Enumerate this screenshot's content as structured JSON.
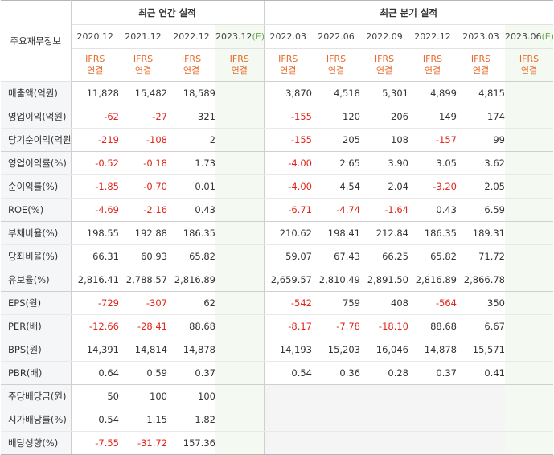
{
  "table": {
    "corner_label": "주요재무정보",
    "annual_group_title": "최근 연간 실적",
    "quarter_group_title": "최근 분기 실적",
    "annual_periods": [
      "2020.12",
      "2021.12",
      "2022.12",
      "2023.12"
    ],
    "annual_estimate_mark": "(E)",
    "quarter_periods": [
      "2022.03",
      "2022.06",
      "2022.09",
      "2022.12",
      "2023.03",
      "2023.06"
    ],
    "quarter_estimate_mark": "(E)",
    "basis_line1": "IFRS",
    "basis_line2": "연결",
    "rows": [
      {
        "label": "매출액(억원)",
        "values": [
          "11,828",
          "15,482",
          "18,589",
          "",
          "3,870",
          "4,518",
          "5,301",
          "4,899",
          "4,815",
          ""
        ]
      },
      {
        "label": "영업이익(억원)",
        "values": [
          "-62",
          "-27",
          "321",
          "",
          "-155",
          "120",
          "206",
          "149",
          "174",
          ""
        ]
      },
      {
        "label": "당기순이익(억원)",
        "values": [
          "-219",
          "-108",
          "2",
          "",
          "-155",
          "205",
          "108",
          "-157",
          "99",
          ""
        ]
      },
      {
        "label": "영업이익률(%)",
        "values": [
          "-0.52",
          "-0.18",
          "1.73",
          "",
          "-4.00",
          "2.65",
          "3.90",
          "3.05",
          "3.62",
          ""
        ]
      },
      {
        "label": "순이익률(%)",
        "values": [
          "-1.85",
          "-0.70",
          "0.01",
          "",
          "-4.00",
          "4.54",
          "2.04",
          "-3.20",
          "2.05",
          ""
        ]
      },
      {
        "label": "ROE(%)",
        "values": [
          "-4.69",
          "-2.16",
          "0.43",
          "",
          "-6.71",
          "-4.74",
          "-1.64",
          "0.43",
          "6.59",
          ""
        ]
      },
      {
        "label": "부채비율(%)",
        "values": [
          "198.55",
          "192.88",
          "186.35",
          "",
          "210.62",
          "198.41",
          "212.84",
          "186.35",
          "189.31",
          ""
        ]
      },
      {
        "label": "당좌비율(%)",
        "values": [
          "66.31",
          "60.93",
          "65.82",
          "",
          "59.07",
          "67.43",
          "66.25",
          "65.82",
          "71.72",
          ""
        ]
      },
      {
        "label": "유보율(%)",
        "values": [
          "2,816.41",
          "2,788.57",
          "2,816.89",
          "",
          "2,659.57",
          "2,810.49",
          "2,891.50",
          "2,816.89",
          "2,866.78",
          ""
        ]
      },
      {
        "label": "EPS(원)",
        "values": [
          "-729",
          "-307",
          "62",
          "",
          "-542",
          "759",
          "408",
          "-564",
          "350",
          ""
        ]
      },
      {
        "label": "PER(배)",
        "values": [
          "-12.66",
          "-28.41",
          "88.68",
          "",
          "-8.17",
          "-7.78",
          "-18.10",
          "88.68",
          "6.67",
          ""
        ]
      },
      {
        "label": "BPS(원)",
        "values": [
          "14,391",
          "14,814",
          "14,878",
          "",
          "14,193",
          "15,203",
          "16,046",
          "14,878",
          "15,571",
          ""
        ]
      },
      {
        "label": "PBR(배)",
        "values": [
          "0.64",
          "0.59",
          "0.37",
          "",
          "0.54",
          "0.36",
          "0.28",
          "0.37",
          "0.41",
          ""
        ]
      },
      {
        "label": "주당배당금(원)",
        "values": [
          "50",
          "100",
          "100",
          "",
          "",
          "",
          "",
          "",
          "",
          ""
        ]
      },
      {
        "label": "시가배당률(%)",
        "values": [
          "0.54",
          "1.15",
          "1.82",
          "",
          "",
          "",
          "",
          "",
          "",
          ""
        ]
      },
      {
        "label": "배당성향(%)",
        "values": [
          "-7.55",
          "-31.72",
          "157.36",
          "",
          "",
          "",
          "",
          "",
          "",
          ""
        ]
      }
    ]
  },
  "colors": {
    "negative": "#e0271b",
    "basis_text": "#e86a2a",
    "estimate_mark": "#6aa84f",
    "estimate_column_bg": "#f4f9f1",
    "label_column_bg": "#f4f6f8"
  }
}
